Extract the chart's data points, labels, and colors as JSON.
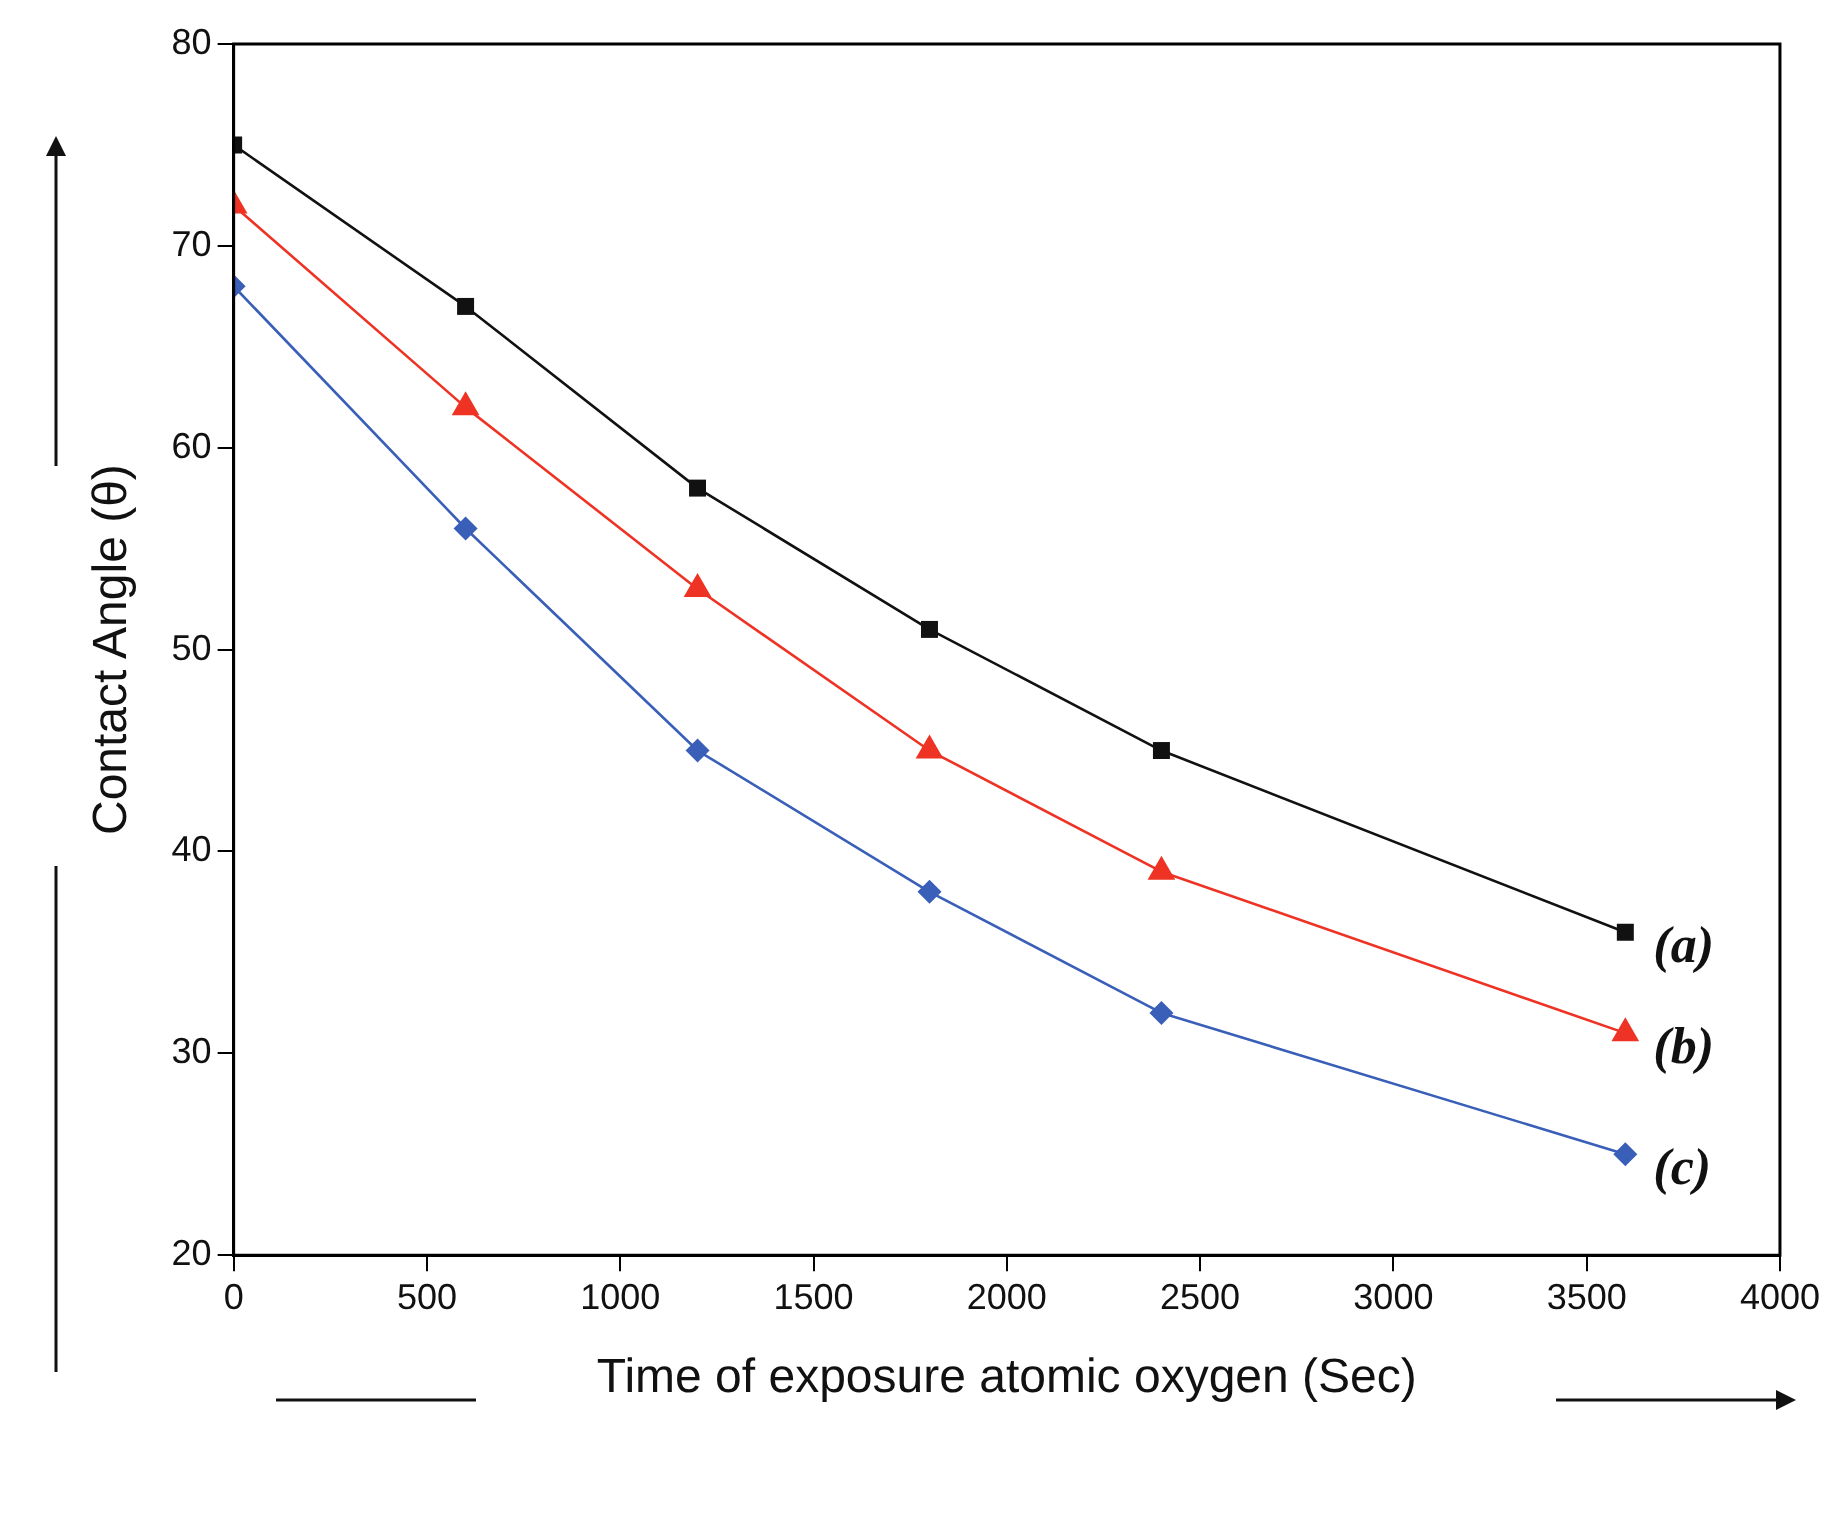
{
  "chart_data": {
    "type": "line",
    "xlabel": "Time of exposure atomic oxygen (Sec)",
    "ylabel": "Contact Angle (θ)",
    "x": [
      0,
      600,
      1200,
      1800,
      2400,
      3600
    ],
    "series": [
      {
        "name": "(a)",
        "color": "#111111",
        "marker": "square",
        "values": [
          75,
          67,
          58,
          51,
          45,
          36
        ]
      },
      {
        "name": "(b)",
        "color": "#ee3324",
        "marker": "triangle",
        "values": [
          72,
          62,
          53,
          45,
          39,
          31
        ]
      },
      {
        "name": "(c)",
        "color": "#3a5fb8",
        "marker": "diamond",
        "values": [
          68,
          56,
          45,
          38,
          32,
          25
        ]
      }
    ],
    "xlim": [
      0,
      4000
    ],
    "xticks": [
      0,
      500,
      1000,
      1500,
      2000,
      2500,
      3000,
      3500,
      4000
    ],
    "ylim": [
      20,
      80
    ],
    "yticks": [
      20,
      30,
      40,
      50,
      60,
      70,
      80
    ],
    "grid": false,
    "legend": false
  }
}
